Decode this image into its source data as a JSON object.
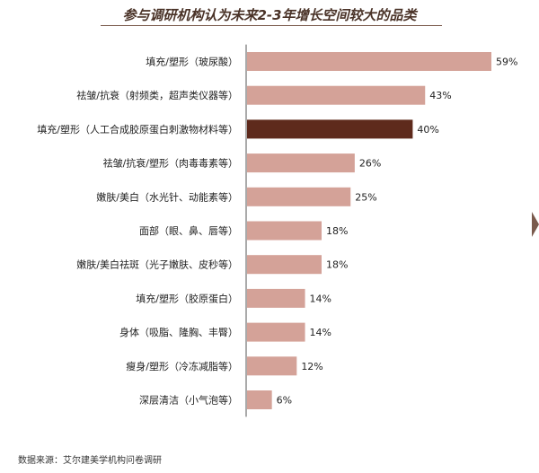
{
  "title": "参与调研机构认为未来2-3年增长空间较大的品类",
  "source": "数据来源：艾尔建美学机构问卷调研",
  "colors": {
    "bar": "#d4a298",
    "highlight": "#5e2a1c",
    "axis": "#555555"
  },
  "chart_data": {
    "type": "bar",
    "orientation": "horizontal",
    "categories": [
      "填充/塑形（玻尿酸）",
      "祛皱/抗衰（射频类，超声类仪器等）",
      "填充/塑形（人工合成胶原蛋白刺激物材料等）",
      "祛皱/抗衰/塑形（肉毒毒素等）",
      "嫩肤/美白（水光针、动能素等）",
      "面部（眼、鼻、唇等）",
      "嫩肤/美白祛斑（光子嫩肤、皮秒等）",
      "填充/塑形（胶原蛋白）",
      "身体（吸脂、隆胸、丰臀）",
      "瘦身/塑形（冷冻减脂等）",
      "深层清洁（小气泡等）"
    ],
    "values": [
      59,
      43,
      40,
      26,
      25,
      18,
      18,
      14,
      14,
      12,
      6
    ],
    "labels": [
      "59%",
      "43%",
      "40%",
      "26%",
      "25%",
      "18%",
      "18%",
      "14%",
      "14%",
      "12%",
      "6%"
    ],
    "highlight_index": 2,
    "xlim": [
      0,
      59
    ]
  }
}
